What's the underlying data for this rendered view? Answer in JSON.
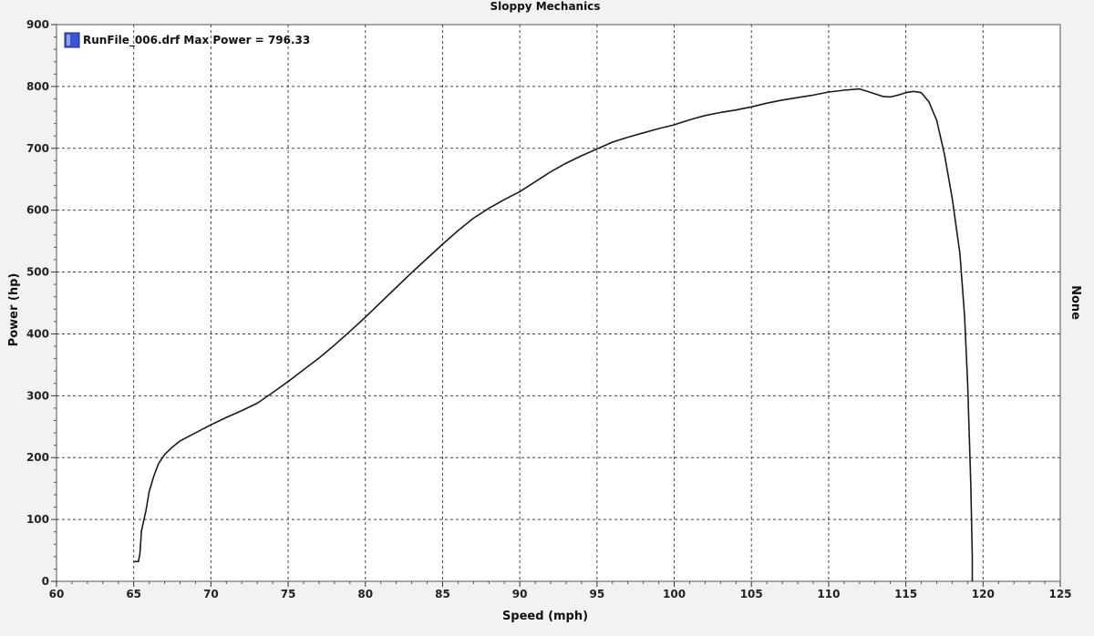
{
  "chart_data": {
    "type": "line",
    "title": "Sloppy Mechanics",
    "xlabel": "Speed (mph)",
    "ylabel": "Power (hp)",
    "y2label": "None",
    "xlim": [
      60,
      125
    ],
    "ylim": [
      0,
      900
    ],
    "xticks": [
      60,
      65,
      70,
      75,
      80,
      85,
      90,
      95,
      100,
      105,
      110,
      115,
      120,
      125
    ],
    "yticks": [
      0,
      100,
      200,
      300,
      400,
      500,
      600,
      700,
      800,
      900
    ],
    "grid": true,
    "legend_position": "top-left",
    "series": [
      {
        "name": "RunFile_006.drf Max Power = 796.33",
        "color": "#1a1a1a",
        "legend_color": "#3a56d4",
        "x": [
          65.0,
          65.3,
          65.4,
          65.5,
          65.8,
          66.0,
          66.3,
          66.6,
          67.0,
          67.5,
          68.0,
          69.0,
          70.0,
          71.0,
          72.0,
          73.0,
          74.0,
          75.0,
          76.0,
          77.0,
          78.0,
          79.0,
          80.0,
          81.0,
          82.0,
          83.0,
          84.0,
          85.0,
          86.0,
          87.0,
          88.0,
          89.0,
          90.0,
          91.0,
          92.0,
          93.0,
          94.0,
          95.0,
          96.0,
          97.0,
          98.0,
          99.0,
          100.0,
          101.0,
          102.0,
          103.0,
          104.0,
          105.0,
          106.0,
          107.0,
          108.0,
          109.0,
          110.0,
          111.0,
          112.0,
          112.5,
          113.0,
          113.5,
          114.0,
          114.5,
          115.0,
          115.5,
          116.0,
          116.5,
          117.0,
          117.5,
          118.0,
          118.5,
          118.8,
          119.0,
          119.2,
          119.3,
          119.3
        ],
        "y": [
          32,
          32,
          45,
          82,
          115,
          145,
          170,
          190,
          205,
          217,
          227,
          240,
          253,
          265,
          276,
          288,
          305,
          323,
          342,
          361,
          382,
          404,
          427,
          451,
          475,
          499,
          522,
          545,
          567,
          587,
          603,
          617,
          630,
          646,
          662,
          676,
          688,
          699,
          710,
          718,
          725,
          732,
          738,
          746,
          753,
          758,
          762,
          767,
          773,
          778,
          782,
          786,
          791,
          794,
          796,
          792,
          788,
          784,
          783,
          786,
          790,
          792,
          790,
          775,
          745,
          690,
          620,
          530,
          430,
          320,
          160,
          40,
          0
        ]
      }
    ]
  }
}
